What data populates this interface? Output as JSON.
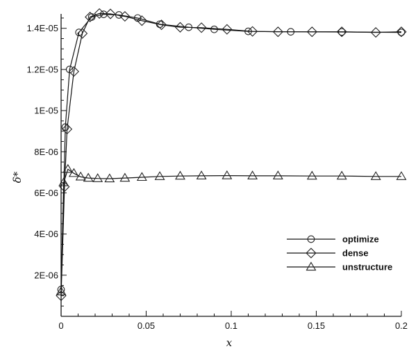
{
  "chart_data": {
    "type": "line",
    "title": "",
    "xlabel": "x",
    "ylabel": "δ*",
    "xlim": [
      0,
      0.2
    ],
    "ylim": [
      0,
      1.47e-05
    ],
    "xticks": [
      0,
      0.05,
      0.1,
      0.15,
      0.2
    ],
    "xtick_labels": [
      "0",
      "0.05",
      "0.1",
      "0.15",
      "0.2"
    ],
    "yticks": [
      2e-06,
      4e-06,
      6e-06,
      8e-06,
      1e-05,
      1.2e-05,
      1.4e-05
    ],
    "ytick_labels": [
      "2E-06",
      "4E-06",
      "6E-06",
      "8E-06",
      "1E-05",
      "1.2E-05",
      "1.4E-05"
    ],
    "grid": false,
    "legend_position": "bottom-right",
    "series": [
      {
        "name": "optimize",
        "marker": "circle",
        "x": [
          0,
          0.0025,
          0.005,
          0.0105,
          0.018,
          0.025,
          0.034,
          0.045,
          0.058,
          0.075,
          0.09,
          0.11,
          0.135,
          0.165,
          0.2
        ],
        "y": [
          1.3e-06,
          9.2e-06,
          1.2e-05,
          1.38e-05,
          1.455e-05,
          1.468e-05,
          1.465e-05,
          1.45e-05,
          1.42e-05,
          1.405e-05,
          1.395e-05,
          1.385e-05,
          1.383e-05,
          1.382e-05,
          1.38e-05
        ]
      },
      {
        "name": "dense",
        "marker": "diamond",
        "x": [
          0,
          0.002,
          0.0035,
          0.0075,
          0.0125,
          0.017,
          0.0225,
          0.029,
          0.0375,
          0.0475,
          0.059,
          0.07,
          0.0825,
          0.0975,
          0.1125,
          0.1275,
          0.1475,
          0.165,
          0.185,
          0.2
        ],
        "y": [
          1e-06,
          6.3e-06,
          9.1e-06,
          1.19e-05,
          1.375e-05,
          1.455e-05,
          1.472e-05,
          1.47e-05,
          1.458e-05,
          1.437e-05,
          1.417e-05,
          1.405e-05,
          1.403e-05,
          1.395e-05,
          1.385e-05,
          1.383e-05,
          1.383e-05,
          1.383e-05,
          1.38e-05,
          1.383e-05
        ]
      },
      {
        "name": "unstructure",
        "marker": "triangle",
        "x": [
          0,
          0.0015,
          0.004,
          0.0075,
          0.0115,
          0.016,
          0.0215,
          0.0285,
          0.0375,
          0.0475,
          0.058,
          0.07,
          0.0825,
          0.0975,
          0.1125,
          0.1275,
          0.1475,
          0.165,
          0.185,
          0.2
        ],
        "y": [
          1.2e-06,
          6.5e-06,
          7.15e-06,
          6.95e-06,
          6.78e-06,
          6.72e-06,
          6.7e-06,
          6.69e-06,
          6.72e-06,
          6.76e-06,
          6.8e-06,
          6.82e-06,
          6.83e-06,
          6.84e-06,
          6.83e-06,
          6.83e-06,
          6.82e-06,
          6.82e-06,
          6.8e-06,
          6.8e-06
        ]
      }
    ]
  }
}
